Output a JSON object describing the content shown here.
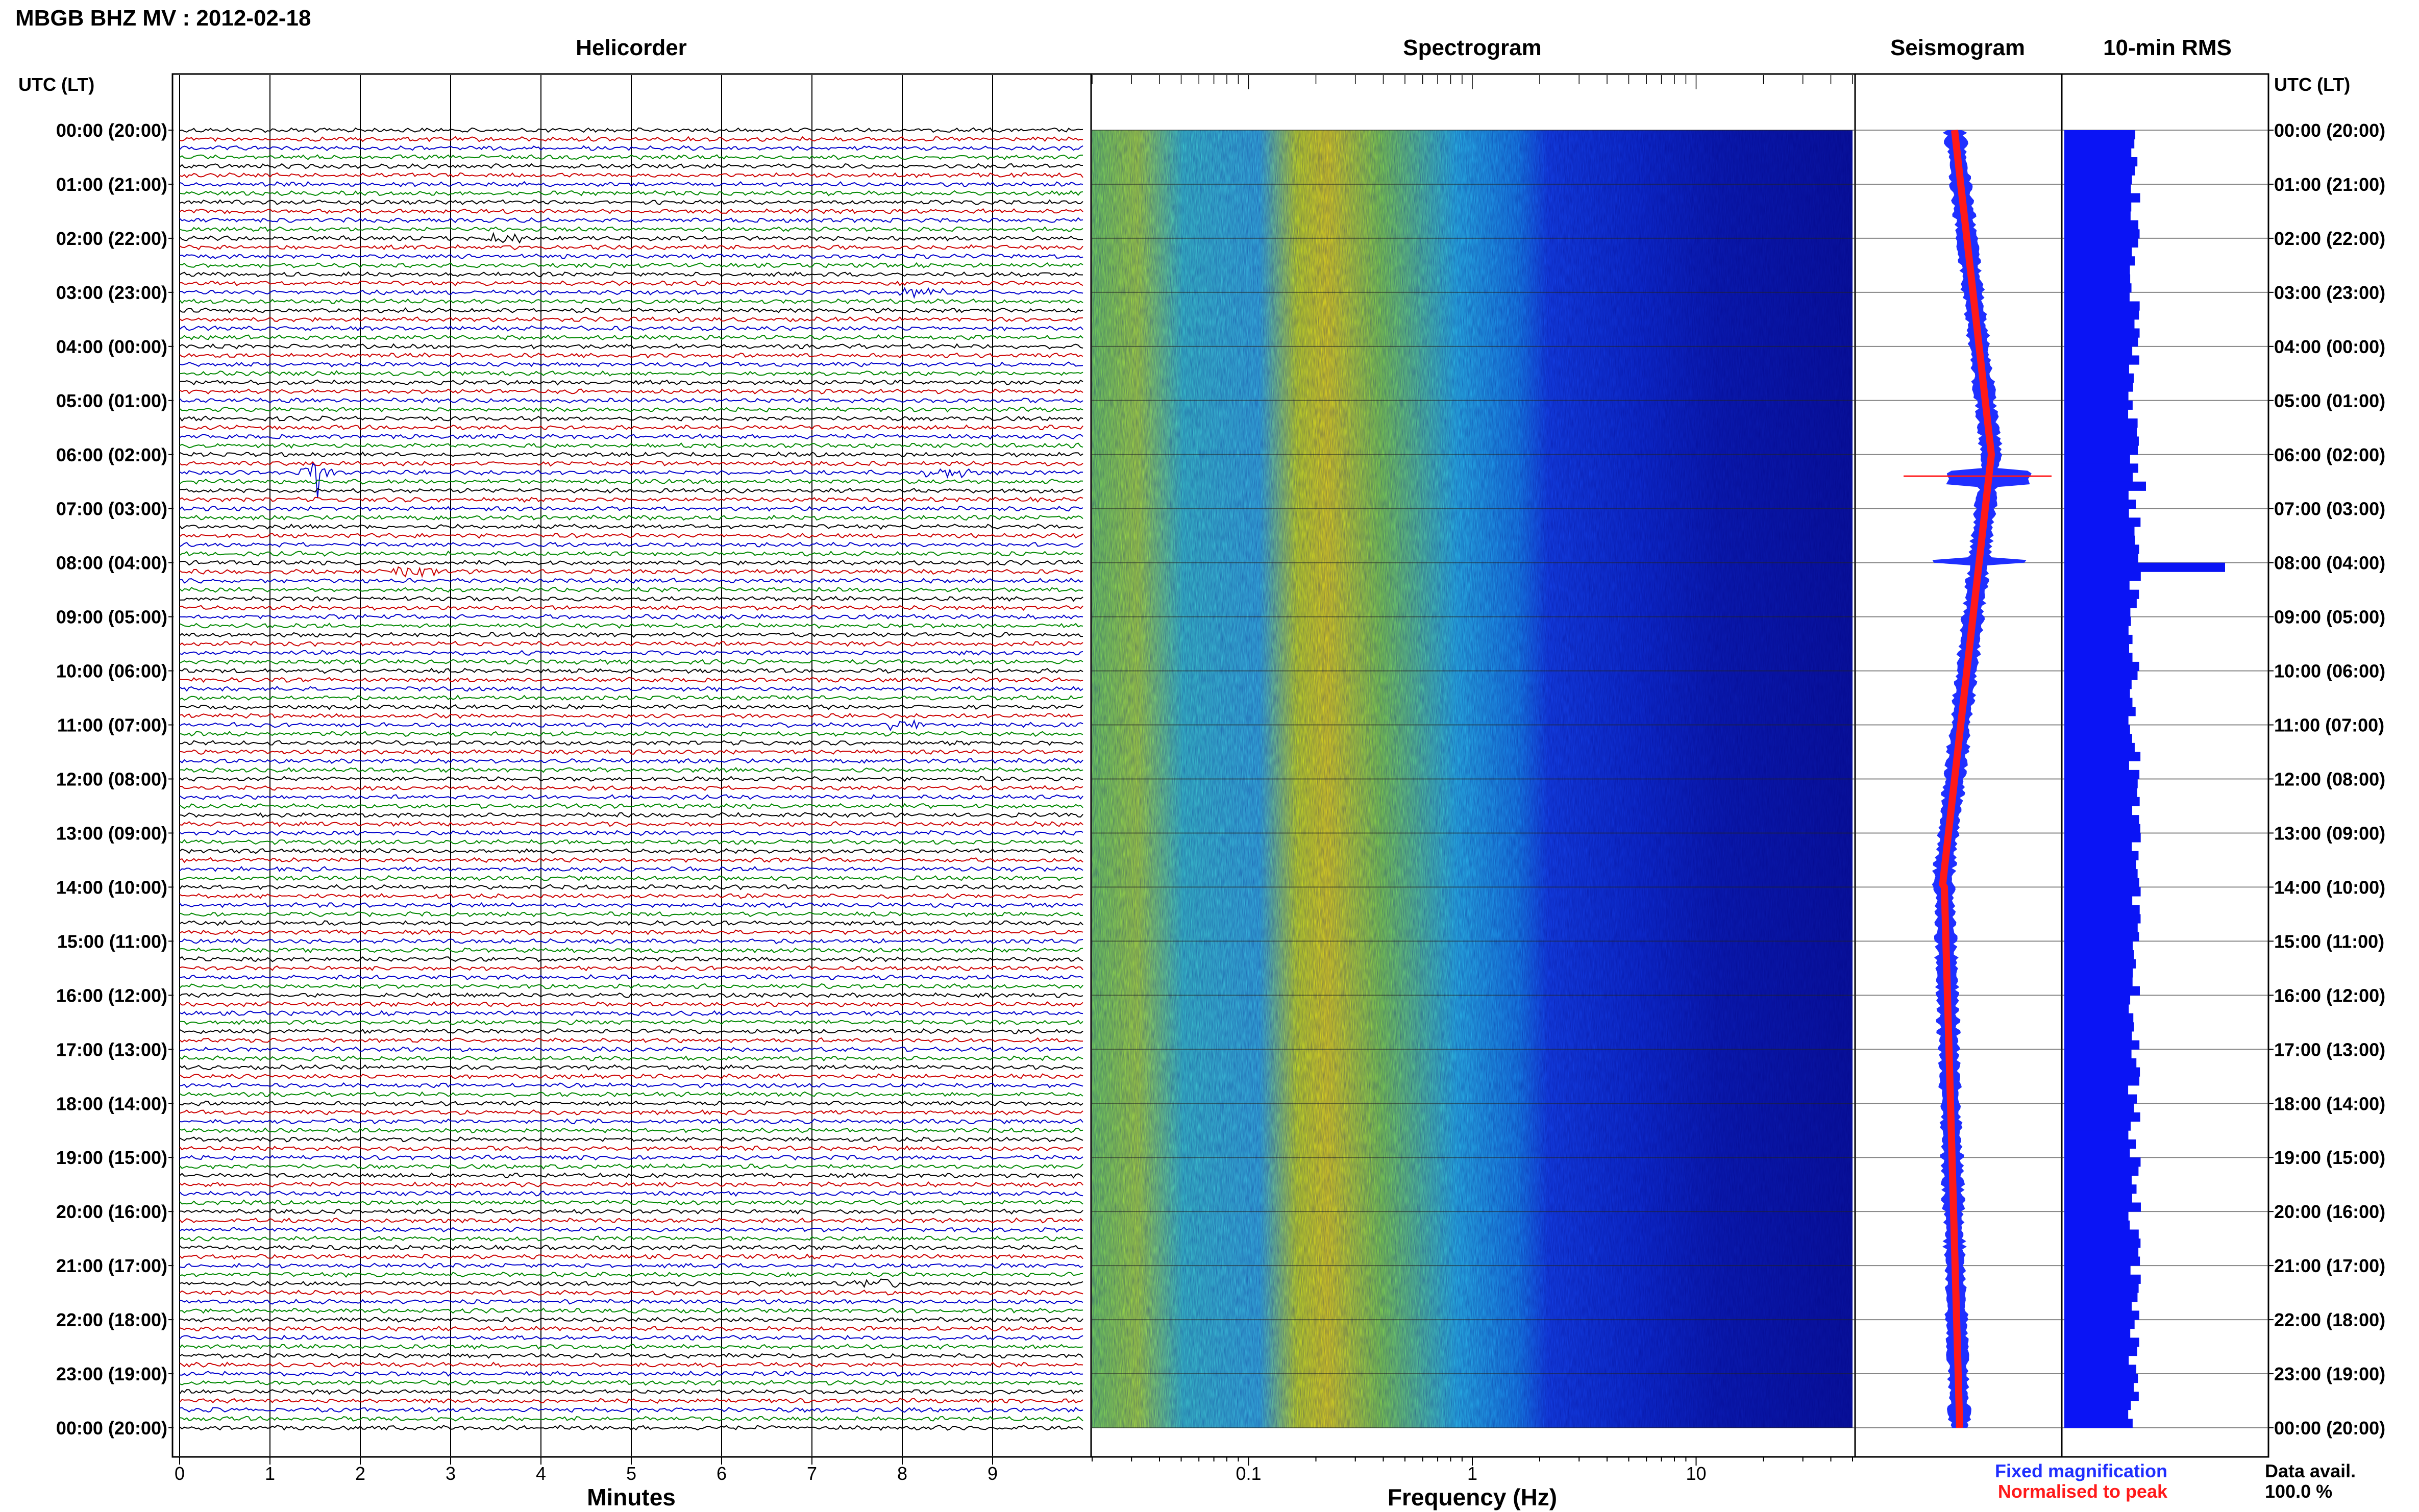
{
  "header": {
    "station_title": "MBGB BHZ MV : 2012-02-18",
    "utc_label_left": "UTC (LT)",
    "utc_label_right": "UTC (LT)"
  },
  "panels": {
    "helicorder": {
      "title": "Helicorder",
      "xlabel": "Minutes",
      "ticks": [
        "0",
        "1",
        "2",
        "3",
        "4",
        "5",
        "6",
        "7",
        "8",
        "9"
      ]
    },
    "spectrogram": {
      "title": "Spectrogram",
      "xlabel": "Frequency (Hz)",
      "ticks": [
        "0.1",
        "1",
        "10"
      ]
    },
    "seismogram": {
      "title": "Seismogram"
    },
    "rms": {
      "title": "10-min RMS"
    }
  },
  "legend": {
    "fixed_magnification": "Fixed magnification",
    "normalised_to_peak": "Normalised to peak",
    "fixed_color": "#1f2fff",
    "normalised_color": "#ff1a1a"
  },
  "data_avail": {
    "label": "Data avail.",
    "value": "100.0 %"
  },
  "colors": {
    "trace_cycle": [
      "#000000",
      "#cc0000",
      "#0000cc",
      "#008800"
    ],
    "rms_bar": "#0a14f5"
  },
  "chart_data": [
    {
      "type": "line",
      "title": "Helicorder",
      "xlabel": "Minutes",
      "xlim": [
        0,
        10
      ],
      "row_labels": [
        "00:00 (20:00)",
        "01:00 (21:00)",
        "02:00 (22:00)",
        "03:00 (23:00)",
        "04:00 (00:00)",
        "05:00 (01:00)",
        "06:00 (02:00)",
        "07:00 (03:00)",
        "08:00 (04:00)",
        "09:00 (05:00)",
        "10:00 (06:00)",
        "11:00 (07:00)",
        "12:00 (08:00)",
        "13:00 (09:00)",
        "14:00 (10:00)",
        "15:00 (11:00)",
        "16:00 (12:00)",
        "17:00 (13:00)",
        "18:00 (14:00)",
        "19:00 (15:00)",
        "20:00 (16:00)",
        "21:00 (17:00)",
        "22:00 (18:00)",
        "23:00 (19:00)",
        "00:00 (20:00)"
      ],
      "traces_per_hour": 6,
      "events": [
        {
          "trace": 12,
          "minute": 3.6,
          "desc": "burst"
        },
        {
          "trace": 18,
          "minute": 8.2,
          "desc": "burst"
        },
        {
          "trace": 38,
          "minute": 1.5,
          "desc": "spike"
        },
        {
          "trace": 38,
          "minute": 8.5,
          "desc": "spikes"
        },
        {
          "trace": 49,
          "minute": 2.6,
          "desc": "long-period arrival"
        },
        {
          "trace": 66,
          "minute": 8.0,
          "desc": "burst"
        },
        {
          "trace": 128,
          "minute": 7.7,
          "desc": "burst"
        }
      ]
    },
    {
      "type": "heatmap",
      "title": "Spectrogram",
      "xlabel": "Frequency (Hz)",
      "xscale": "log",
      "xlim": [
        0.02,
        50
      ],
      "xticks": [
        0.1,
        1,
        10
      ],
      "colormap": "jet"
    },
    {
      "type": "line",
      "title": "Seismogram",
      "series": [
        {
          "name": "Fixed magnification",
          "color": "#1f2fff"
        },
        {
          "name": "Normalised to peak",
          "color": "#ff1a1a"
        }
      ]
    },
    {
      "type": "bar",
      "title": "10-min RMS",
      "orientation": "horizontal",
      "bars_per_hour": 6,
      "hours": 24,
      "peak_hour": 8.0
    }
  ]
}
